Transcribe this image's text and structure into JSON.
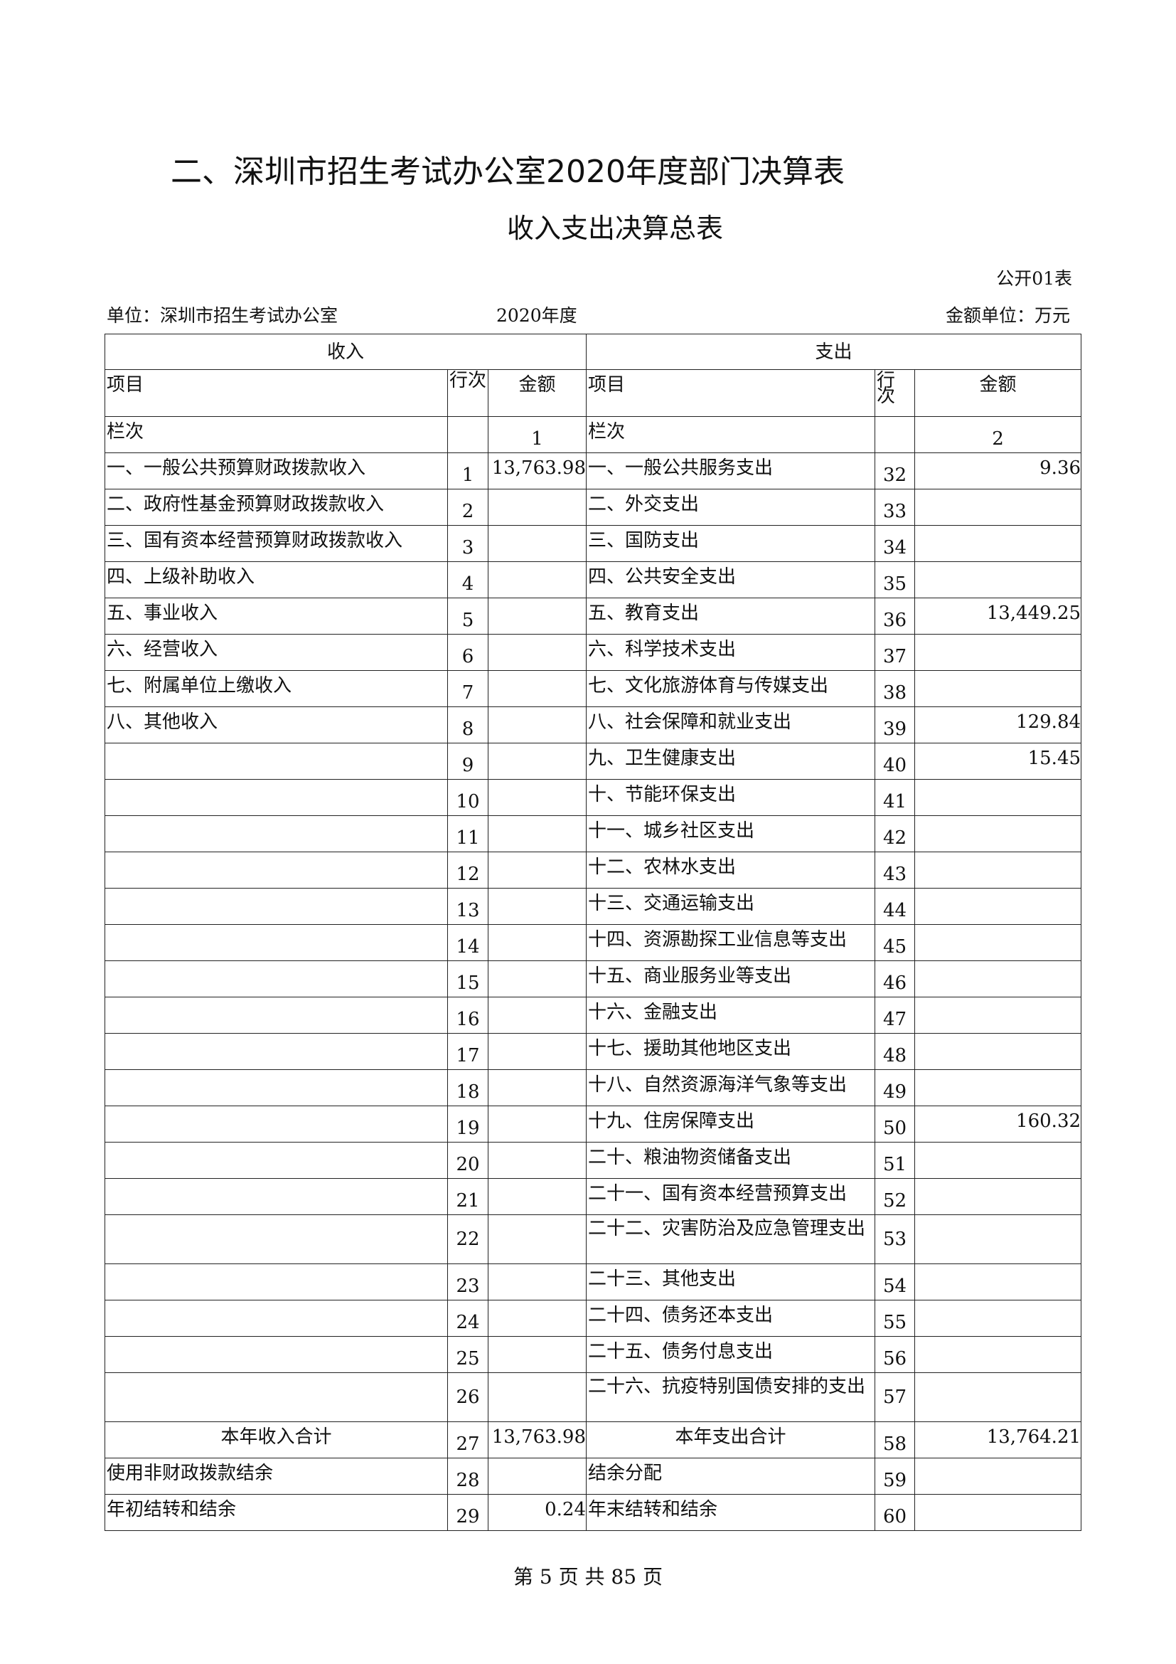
{
  "title": "二、深圳市招生考试办公室2020年度部门决算表",
  "subtitle": "收入支出决算总表",
  "table_code": "公开01表",
  "unit_label": "单位：深圳市招生考试办公室",
  "year_label": "2020年度",
  "amount_unit": "金额单位：万元",
  "headers": {
    "income": "收入",
    "expense": "支出",
    "item": "项目",
    "line": "行次",
    "amount": "金额",
    "column": "栏次",
    "col1": "1",
    "col2": "2"
  },
  "rows": [
    {
      "li": "一、一般公共预算财政拨款收入",
      "ln": "1",
      "la": "13,763.98",
      "ri": "一、一般公共服务支出",
      "rn": "32",
      "ra": "9.36"
    },
    {
      "li": "二、政府性基金预算财政拨款收入",
      "ln": "2",
      "la": "",
      "ri": "二、外交支出",
      "rn": "33",
      "ra": ""
    },
    {
      "li": "三、国有资本经营预算财政拨款收入",
      "ln": "3",
      "la": "",
      "ri": "三、国防支出",
      "rn": "34",
      "ra": ""
    },
    {
      "li": "四、上级补助收入",
      "ln": "4",
      "la": "",
      "ri": "四、公共安全支出",
      "rn": "35",
      "ra": ""
    },
    {
      "li": "五、事业收入",
      "ln": "5",
      "la": "",
      "ri": "五、教育支出",
      "rn": "36",
      "ra": "13,449.25"
    },
    {
      "li": "六、经营收入",
      "ln": "6",
      "la": "",
      "ri": "六、科学技术支出",
      "rn": "37",
      "ra": ""
    },
    {
      "li": "七、附属单位上缴收入",
      "ln": "7",
      "la": "",
      "ri": "七、文化旅游体育与传媒支出",
      "rn": "38",
      "ra": ""
    },
    {
      "li": "八、其他收入",
      "ln": "8",
      "la": "",
      "ri": "八、社会保障和就业支出",
      "rn": "39",
      "ra": "129.84"
    },
    {
      "li": "",
      "ln": "9",
      "la": "",
      "ri": "九、卫生健康支出",
      "rn": "40",
      "ra": "15.45"
    },
    {
      "li": "",
      "ln": "10",
      "la": "",
      "ri": "十、节能环保支出",
      "rn": "41",
      "ra": ""
    },
    {
      "li": "",
      "ln": "11",
      "la": "",
      "ri": "十一、城乡社区支出",
      "rn": "42",
      "ra": ""
    },
    {
      "li": "",
      "ln": "12",
      "la": "",
      "ri": "十二、农林水支出",
      "rn": "43",
      "ra": ""
    },
    {
      "li": "",
      "ln": "13",
      "la": "",
      "ri": "十三、交通运输支出",
      "rn": "44",
      "ra": ""
    },
    {
      "li": "",
      "ln": "14",
      "la": "",
      "ri": "十四、资源勘探工业信息等支出",
      "rn": "45",
      "ra": ""
    },
    {
      "li": "",
      "ln": "15",
      "la": "",
      "ri": "十五、商业服务业等支出",
      "rn": "46",
      "ra": ""
    },
    {
      "li": "",
      "ln": "16",
      "la": "",
      "ri": "十六、金融支出",
      "rn": "47",
      "ra": ""
    },
    {
      "li": "",
      "ln": "17",
      "la": "",
      "ri": "十七、援助其他地区支出",
      "rn": "48",
      "ra": ""
    },
    {
      "li": "",
      "ln": "18",
      "la": "",
      "ri": "十八、自然资源海洋气象等支出",
      "rn": "49",
      "ra": ""
    },
    {
      "li": "",
      "ln": "19",
      "la": "",
      "ri": "十九、住房保障支出",
      "rn": "50",
      "ra": "160.32"
    },
    {
      "li": "",
      "ln": "20",
      "la": "",
      "ri": "二十、粮油物资储备支出",
      "rn": "51",
      "ra": ""
    },
    {
      "li": "",
      "ln": "21",
      "la": "",
      "ri": "二十一、国有资本经营预算支出",
      "rn": "52",
      "ra": ""
    },
    {
      "li": "",
      "ln": "22",
      "la": "",
      "ri": "二十二、灾害防治及应急管理支出",
      "rn": "53",
      "ra": "",
      "tall": true
    },
    {
      "li": "",
      "ln": "23",
      "la": "",
      "ri": "二十三、其他支出",
      "rn": "54",
      "ra": ""
    },
    {
      "li": "",
      "ln": "24",
      "la": "",
      "ri": "二十四、债务还本支出",
      "rn": "55",
      "ra": ""
    },
    {
      "li": "",
      "ln": "25",
      "la": "",
      "ri": "二十五、债务付息支出",
      "rn": "56",
      "ra": ""
    },
    {
      "li": "",
      "ln": "26",
      "la": "",
      "ri": "二十六、抗疫特别国债安排的支出",
      "rn": "57",
      "ra": "",
      "tall": true
    },
    {
      "li": "本年收入合计",
      "ln": "27",
      "la": "13,763.98",
      "ri": "本年支出合计",
      "rn": "58",
      "ra": "13,764.21",
      "total": true
    },
    {
      "li": "使用非财政拨款结余",
      "ln": "28",
      "la": "",
      "ri": "结余分配",
      "rn": "59",
      "ra": ""
    },
    {
      "li": "年初结转和结余",
      "ln": "29",
      "la": "0.24",
      "ri": "年末结转和结余",
      "rn": "60",
      "ra": ""
    }
  ],
  "footer": "第 5 页 共 85 页"
}
